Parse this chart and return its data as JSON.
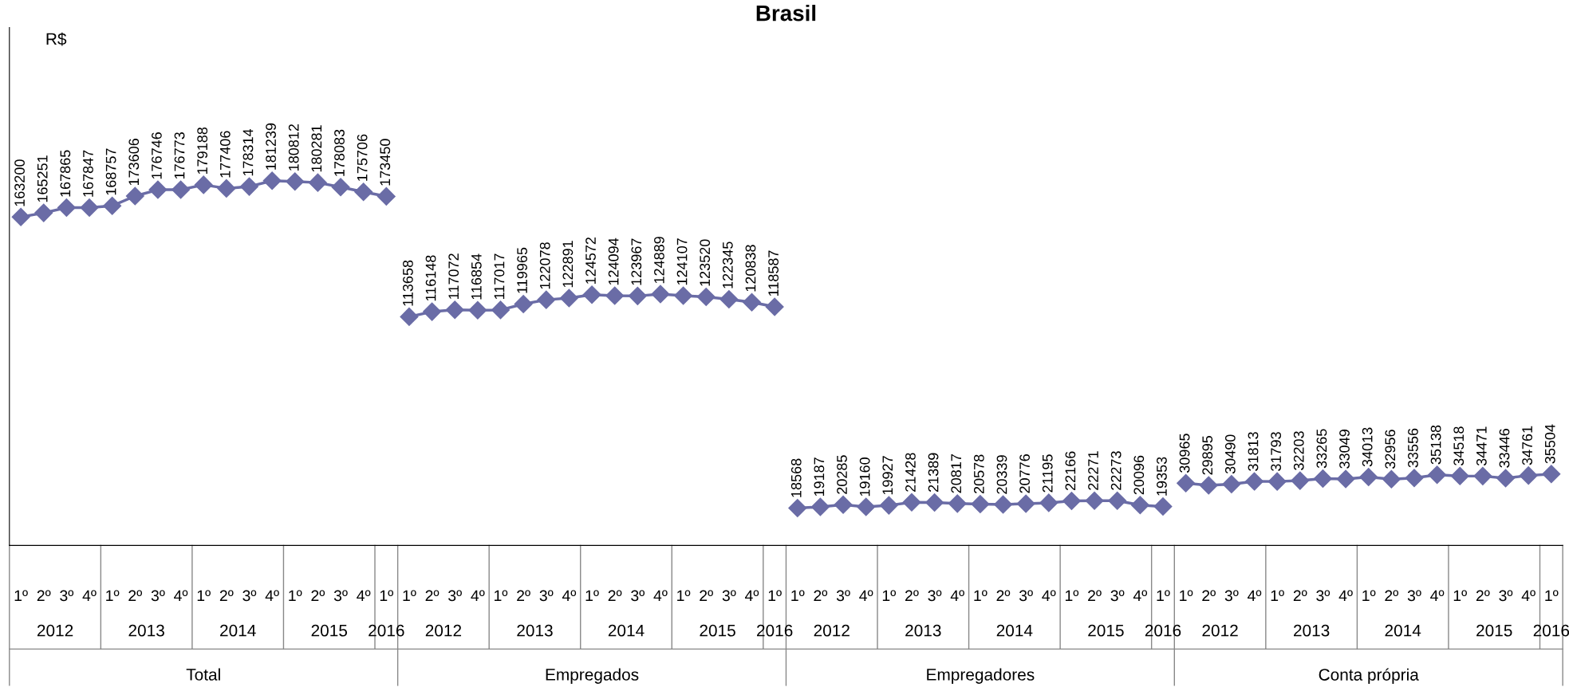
{
  "chart_data": {
    "type": "line",
    "title": "Brasil",
    "categories": [
      "1º",
      "2º",
      "3º",
      "4º",
      "1º",
      "2º",
      "3º",
      "4º",
      "1º",
      "2º",
      "3º",
      "4º",
      "1º",
      "2º",
      "3º",
      "4º",
      "1º",
      "1º",
      "2º",
      "3º",
      "4º",
      "1º",
      "2º",
      "3º",
      "4º",
      "1º",
      "2º",
      "3º",
      "4º",
      "1º",
      "2º",
      "3º",
      "4º",
      "1º",
      "1º",
      "2º",
      "3º",
      "4º",
      "1º",
      "2º",
      "3º",
      "4º",
      "1º",
      "2º",
      "3º",
      "4º",
      "1º",
      "2º",
      "3º",
      "4º",
      "1º",
      "1º",
      "2º",
      "3º",
      "4º",
      "1º",
      "2º",
      "3º",
      "4º",
      "1º",
      "2º",
      "3º",
      "4º",
      "1º",
      "2º",
      "3º",
      "4º",
      "1º"
    ],
    "series": [
      {
        "color": "#6a6ca6",
        "values": [
          163200,
          165251,
          167865,
          167847,
          168757,
          173606,
          176746,
          176773,
          179188,
          177406,
          178314,
          181239,
          180812,
          180281,
          178083,
          175706,
          173450,
          null,
          null,
          null,
          null,
          null,
          null,
          null,
          null,
          null,
          null,
          null,
          null,
          null,
          null,
          null,
          null,
          null,
          null,
          null,
          null,
          null,
          null,
          null,
          null,
          null,
          null,
          null,
          null,
          null,
          null,
          null,
          null,
          null,
          null,
          null,
          null,
          null,
          null,
          null,
          null,
          null,
          null,
          null,
          null,
          null,
          null,
          null,
          null,
          null,
          null,
          null
        ]
      },
      {
        "color": "#6a6ca6",
        "values": [
          null,
          null,
          null,
          null,
          null,
          null,
          null,
          null,
          null,
          null,
          null,
          null,
          null,
          null,
          null,
          null,
          null,
          113658,
          116148,
          117072,
          116854,
          117017,
          119965,
          122078,
          122891,
          124572,
          124094,
          123967,
          124889,
          124107,
          123520,
          122345,
          120838,
          118587,
          null,
          null,
          null,
          null,
          null,
          null,
          null,
          null,
          null,
          null,
          null,
          null,
          null,
          null,
          null,
          null,
          null,
          null,
          null,
          null,
          null,
          null,
          null,
          null,
          null,
          null,
          null,
          null,
          null,
          null,
          null,
          null,
          null,
          null
        ]
      },
      {
        "color": "#6a6ca6",
        "values": [
          null,
          null,
          null,
          null,
          null,
          null,
          null,
          null,
          null,
          null,
          null,
          null,
          null,
          null,
          null,
          null,
          null,
          null,
          null,
          null,
          null,
          null,
          null,
          null,
          null,
          null,
          null,
          null,
          null,
          null,
          null,
          null,
          null,
          null,
          18568,
          19187,
          20285,
          19160,
          19927,
          21428,
          21389,
          20817,
          20578,
          20339,
          20776,
          21195,
          22166,
          22271,
          22273,
          20096,
          19353,
          null,
          null,
          null,
          null,
          null,
          null,
          null,
          null,
          null,
          null,
          null,
          null,
          null,
          null,
          null,
          null,
          null
        ]
      },
      {
        "color": "#6a6ca6",
        "values": [
          null,
          null,
          null,
          null,
          null,
          null,
          null,
          null,
          null,
          null,
          null,
          null,
          null,
          null,
          null,
          null,
          null,
          null,
          null,
          null,
          null,
          null,
          null,
          null,
          null,
          null,
          null,
          null,
          null,
          null,
          null,
          null,
          null,
          null,
          null,
          null,
          null,
          null,
          null,
          null,
          null,
          null,
          null,
          null,
          null,
          null,
          null,
          null,
          null,
          null,
          null,
          30965,
          29895,
          30490,
          31813,
          31793,
          32203,
          33265,
          33049,
          34013,
          32956,
          33556,
          35138,
          34518,
          34471,
          33446,
          34761,
          35504
        ]
      }
    ],
    "annotations": [
      "R$",
      "2012",
      "2013",
      "2014",
      "2015",
      "2016",
      "2012",
      "2013",
      "2014",
      "2015",
      "2016",
      "2012",
      "2013",
      "2014",
      "2015",
      "2016",
      "2012",
      "2013",
      "2014",
      "2015",
      "2016",
      "Total",
      "Empregados",
      "Empregadores",
      "Conta própria"
    ],
    "marker": "diamond",
    "data_labels": true,
    "grid": false
  }
}
